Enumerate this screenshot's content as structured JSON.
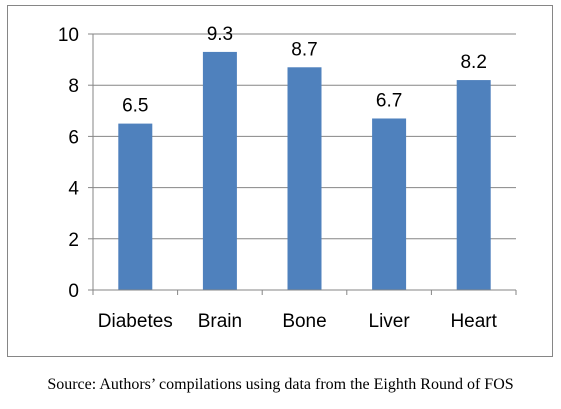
{
  "chart_data": {
    "type": "bar",
    "categories": [
      "Diabetes",
      "Brain",
      "Bone",
      "Liver",
      "Heart"
    ],
    "values": [
      6.5,
      9.3,
      8.7,
      6.7,
      8.2
    ],
    "value_labels": [
      "6.5",
      "9.3",
      "8.7",
      "6.7",
      "8.2"
    ],
    "title": "",
    "xlabel": "",
    "ylabel": "",
    "ylim": [
      0,
      10
    ],
    "yticks": [
      0,
      2,
      4,
      6,
      8,
      10
    ],
    "grid": true,
    "legend": "none",
    "bar_color": "#4F81BD"
  },
  "source_note": "Source: Authors’ compilations using data from the Eighth Round of FOS"
}
